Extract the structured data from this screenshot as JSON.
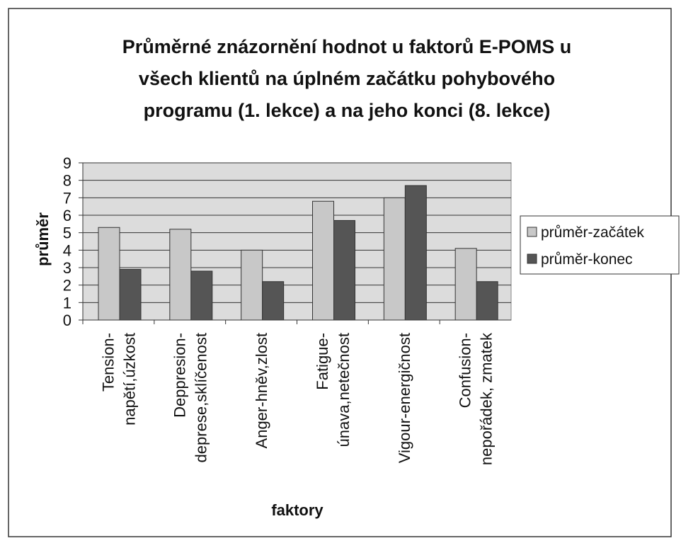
{
  "chart_data": {
    "type": "bar",
    "title": [
      "Průměrné znázornění hodnot u faktorů E-POMS u",
      "všech klientů na úplném začátku pohybového",
      "programu (1. lekce) a na jeho konci (8. lekce)"
    ],
    "ylabel": "průměr",
    "xlabel": "faktory",
    "categories": [
      [
        "Tension-",
        "napětí,úzkost"
      ],
      [
        "Deppresion-",
        "deprese,sklíčenost"
      ],
      [
        "Anger-hněv,zlost"
      ],
      [
        "Fatigue-",
        "únava,netečnost"
      ],
      [
        "Vigour-energičnost"
      ],
      [
        "Confusion-",
        "nepořádek, zmatek"
      ]
    ],
    "series": [
      {
        "name": "průměr-začátek",
        "color": "#c8c8c8",
        "values": [
          5.3,
          5.2,
          4.0,
          6.8,
          7.0,
          4.1
        ]
      },
      {
        "name": "průměr-konec",
        "color": "#555555",
        "values": [
          2.9,
          2.8,
          2.2,
          5.7,
          7.7,
          2.2
        ]
      }
    ],
    "ylim": [
      0,
      9
    ],
    "yticks": [
      0,
      1,
      2,
      3,
      4,
      5,
      6,
      7,
      8,
      9
    ],
    "grid": true,
    "legend": "right"
  }
}
